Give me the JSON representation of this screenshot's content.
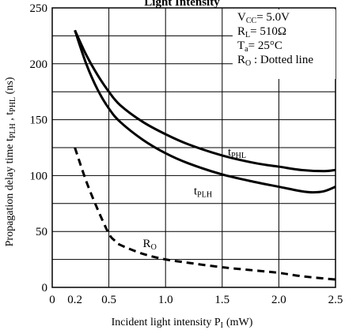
{
  "chart_data": {
    "type": "line",
    "title_fragment": "Light Intensity",
    "xlabel": {
      "main": "Incident light intensity P",
      "sub": "I",
      "unit": "(mW)"
    },
    "ylabel": {
      "a": "Propagation delay time t",
      "s1": "PLH",
      "b": " , t",
      "s2": "PHL",
      "c": "  (ns)"
    },
    "xlim": [
      0,
      2.5
    ],
    "ylim": [
      0,
      250
    ],
    "x_ticks": [
      0,
      0.2,
      0.5,
      1.0,
      1.5,
      2.0,
      2.5
    ],
    "x_tick_labels": [
      "0",
      "0.2",
      "0.5",
      "1.0",
      "1.5",
      "2.0",
      "2.5"
    ],
    "y_ticks": [
      0,
      50,
      100,
      150,
      200,
      250
    ],
    "y_tick_labels": [
      "0",
      "50",
      "100",
      "150",
      "200",
      "250"
    ],
    "x_grid": [
      0.5,
      1.0,
      1.5,
      2.0
    ],
    "y_grid": [
      25,
      50,
      75,
      100,
      125,
      150,
      175,
      200,
      225
    ],
    "grid": true,
    "conditions": {
      "vcc": {
        "main": "V",
        "sub": "CC",
        "rest": "=  5.0V"
      },
      "rl": {
        "main": "R",
        "sub": "L",
        "rest": "=  510Ω"
      },
      "ta": {
        "main": "T",
        "sub": "a",
        "rest": "=  25°C"
      },
      "ro": {
        "main": "R",
        "sub": "O",
        "rest": " : Dotted line"
      }
    },
    "series": [
      {
        "name": "tPHL",
        "label_main": "t",
        "label_sub": "PHL",
        "style": "solid",
        "x": [
          0.2,
          0.3,
          0.4,
          0.5,
          0.6,
          0.8,
          1.0,
          1.2,
          1.5,
          1.8,
          2.0,
          2.2,
          2.4,
          2.5
        ],
        "y": [
          230,
          208,
          190,
          175,
          163,
          148,
          137,
          128,
          118,
          111,
          108,
          105,
          104,
          105
        ]
      },
      {
        "name": "tPLH",
        "label_main": "t",
        "label_sub": "PLH",
        "style": "solid",
        "x": [
          0.2,
          0.3,
          0.4,
          0.5,
          0.6,
          0.8,
          1.0,
          1.2,
          1.5,
          1.8,
          2.0,
          2.2,
          2.3,
          2.4,
          2.5
        ],
        "y": [
          230,
          200,
          177,
          160,
          148,
          132,
          120,
          111,
          101,
          94,
          90,
          86,
          85,
          86,
          90
        ]
      },
      {
        "name": "RO",
        "label_main": "R",
        "label_sub": "O",
        "style": "dashed",
        "x": [
          0.2,
          0.3,
          0.4,
          0.5,
          0.55,
          0.6,
          0.8,
          1.0,
          1.2,
          1.5,
          1.8,
          2.0,
          2.2,
          2.5
        ],
        "y": [
          125,
          95,
          70,
          48,
          42,
          38,
          30,
          25,
          22,
          18,
          15,
          13,
          10,
          7
        ]
      }
    ],
    "series_label_positions": {
      "tPHL": [
        1.55,
        118
      ],
      "tPLH": [
        1.25,
        83
      ],
      "RO": [
        0.8,
        36
      ]
    }
  }
}
